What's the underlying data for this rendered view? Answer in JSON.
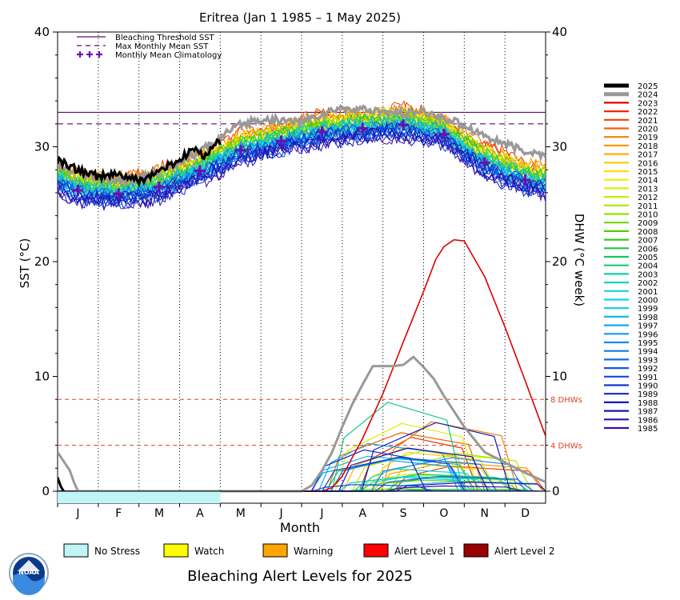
{
  "chart_data": {
    "type": "line",
    "title": "Eritrea      (Jan 1 1985 – 1 May 2025)",
    "xlabel": "Month",
    "ylabel_left": "SST (°C)",
    "ylabel_right": "DHW (°C week)",
    "ylim": [
      0,
      40
    ],
    "xlim": [
      0,
      12
    ],
    "yticks": [
      "0",
      "10",
      "20",
      "30",
      "40"
    ],
    "months": [
      "J",
      "F",
      "M",
      "A",
      "M",
      "J",
      "J",
      "A",
      "S",
      "O",
      "N",
      "D"
    ],
    "bleaching_threshold_sst": 33.0,
    "max_monthly_mean_sst": 32.0,
    "monthly_mean_climatology": [
      26.2,
      25.9,
      26.5,
      27.9,
      29.7,
      30.5,
      31.3,
      31.6,
      31.9,
      31.1,
      28.6,
      27.1
    ],
    "dhw_thresholds": [
      {
        "value": 8,
        "label": "8 DHWs"
      },
      {
        "value": 4,
        "label": "4 DHWs"
      }
    ],
    "reference_legend": [
      {
        "label": "Bleaching Threshold SST",
        "color": "#5b0f6e",
        "style": "solid"
      },
      {
        "label": "Max Monthly Mean SST",
        "color": "#5b0f6e",
        "style": "dashed"
      },
      {
        "label": "Monthly Mean Climatology",
        "color": "#6a10b0",
        "style": "plus"
      }
    ],
    "years": [
      "2025",
      "2024",
      "2023",
      "2022",
      "2021",
      "2020",
      "2019",
      "2018",
      "2017",
      "2016",
      "2015",
      "2014",
      "2013",
      "2012",
      "2011",
      "2010",
      "2009",
      "2008",
      "2007",
      "2006",
      "2005",
      "2004",
      "2003",
      "2002",
      "2001",
      "2000",
      "1999",
      "1998",
      "1997",
      "1996",
      "1995",
      "1994",
      "1993",
      "1992",
      "1991",
      "1990",
      "1989",
      "1988",
      "1987",
      "1986",
      "1985"
    ],
    "year_colors": [
      "#000000",
      "#999999",
      "#dd0000",
      "#e82a00",
      "#ee4400",
      "#f46200",
      "#f77f00",
      "#f99800",
      "#fab000",
      "#fcc800",
      "#fde000",
      "#f2ec00",
      "#e0ee00",
      "#c8ec00",
      "#aee600",
      "#92e000",
      "#70d800",
      "#4fd000",
      "#30cc20",
      "#18c840",
      "#10c860",
      "#10cc80",
      "#10d0a0",
      "#10d4bc",
      "#10d8d4",
      "#10d4e8",
      "#10c8ee",
      "#10b8f0",
      "#10a8f2",
      "#1098f4",
      "#1088f4",
      "#1078f0",
      "#1068ea",
      "#1058e4",
      "#1048dc",
      "#1038d4",
      "#1028ca",
      "#1018c0",
      "#1a10b8",
      "#2a10b0",
      "#3a10a8"
    ],
    "series_highlight": [
      {
        "name": "2025",
        "x": [
          0.0,
          0.5,
          1.0,
          1.5,
          2.0,
          2.5,
          3.0,
          3.3,
          3.6,
          3.85,
          4.0
        ],
        "sst": [
          28.8,
          28.0,
          27.4,
          27.6,
          27.0,
          27.9,
          28.8,
          29.8,
          29.2,
          30.2,
          30.4
        ],
        "dhw_x": [
          0.0,
          0.08,
          0.15
        ],
        "dhw": [
          1.2,
          0.4,
          0.0
        ]
      },
      {
        "name": "2024",
        "x": [
          0,
          0.5,
          1,
          1.5,
          2,
          2.5,
          3,
          3.5,
          4,
          4.5,
          5,
          5.5,
          6,
          6.5,
          7,
          7.5,
          8,
          8.5,
          9,
          9.5,
          10,
          10.5,
          11,
          11.5,
          12
        ],
        "sst": [
          28.2,
          27.6,
          27.2,
          27.0,
          27.2,
          27.9,
          28.7,
          29.6,
          30.8,
          31.9,
          32.4,
          32.3,
          32.2,
          32.8,
          33.4,
          33.2,
          33.0,
          32.9,
          33.0,
          32.5,
          31.9,
          31.0,
          30.2,
          29.6,
          29.2
        ],
        "dhw_x": [
          0,
          0.15,
          0.3,
          0.4,
          0.5,
          6.0,
          6.25,
          6.5,
          6.75,
          7.0,
          7.25,
          7.5,
          7.75,
          8.0,
          8.25,
          8.5,
          8.75,
          9.0,
          9.25,
          9.5,
          10.0,
          10.5,
          11.0,
          11.5,
          12.0
        ],
        "dhw": [
          3.4,
          2.6,
          1.8,
          0.8,
          0,
          0,
          0.5,
          1.8,
          3.4,
          5.6,
          7.6,
          9.3,
          10.9,
          10.9,
          10.9,
          11.0,
          11.7,
          10.8,
          9.8,
          8.3,
          5.6,
          3.4,
          2.5,
          1.6,
          0.8
        ]
      },
      {
        "name": "2023",
        "x": [],
        "sst": [],
        "dhw_x": [
          0,
          6.5,
          6.75,
          7.0,
          7.5,
          8.0,
          8.5,
          9.0,
          9.3,
          9.5,
          9.75,
          10.0,
          10.5,
          11.0,
          11.5,
          12.0
        ],
        "dhw": [
          0,
          0,
          0.3,
          1.3,
          4.6,
          8.5,
          13.0,
          17.4,
          20.2,
          21.3,
          21.9,
          21.8,
          18.7,
          14.3,
          9.6,
          4.8
        ]
      }
    ],
    "alert_band": {
      "label": "No Stress",
      "x_end": 4.0
    },
    "alert_legend": [
      {
        "label": "No Stress",
        "color": "#bff5f5"
      },
      {
        "label": "Watch",
        "color": "#ffff00"
      },
      {
        "label": "Warning",
        "color": "#ffa500"
      },
      {
        "label": "Alert Level 1",
        "color": "#ff0000"
      },
      {
        "label": "Alert Level 2",
        "color": "#990000"
      }
    ],
    "footer_title": "Bleaching Alert Levels for 2025",
    "logo_text": "NOAA"
  }
}
